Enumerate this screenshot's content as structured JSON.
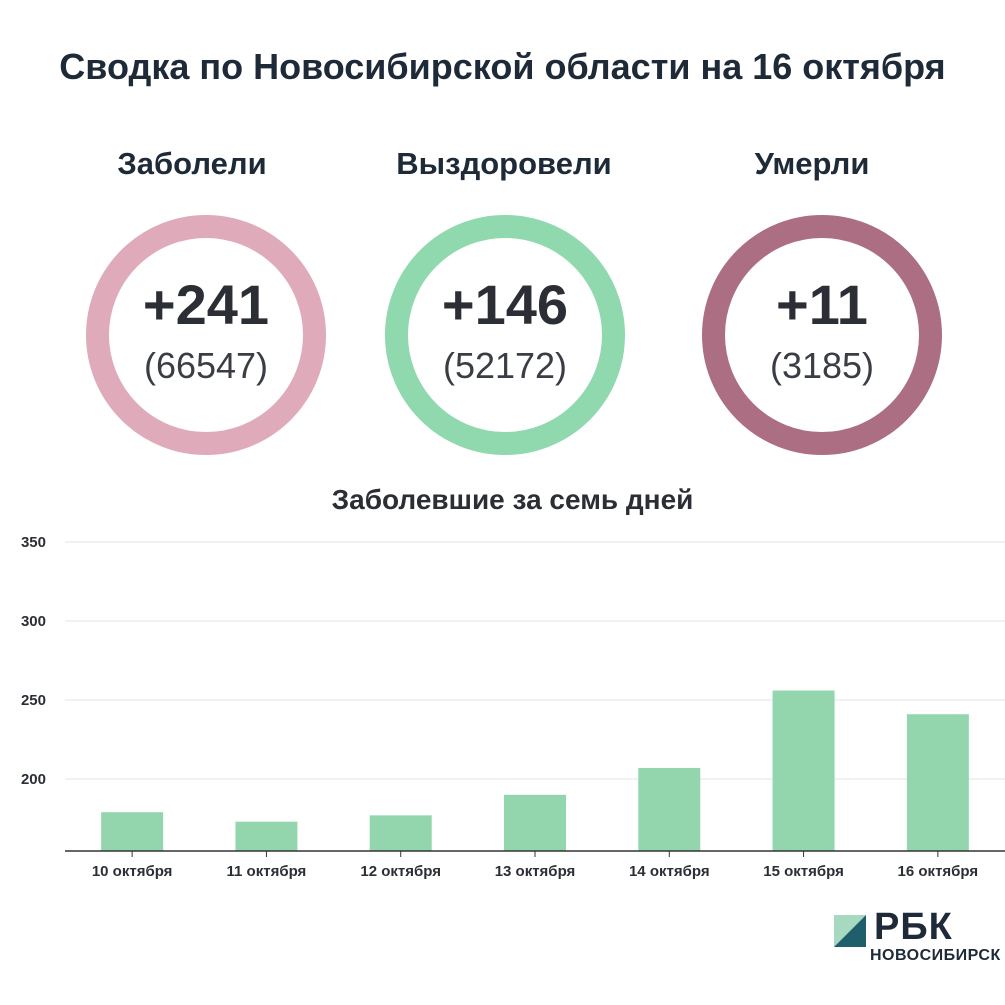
{
  "title": "Сводка по Новосибирской области на 16 октября",
  "stats": [
    {
      "label": "Заболели",
      "value": "+241",
      "total": "(66547)",
      "color": "#dfabbb"
    },
    {
      "label": "Выздоровели",
      "value": "+146",
      "total": "(52172)",
      "color": "#90d8ad"
    },
    {
      "label": "Умерли",
      "value": "+11",
      "total": "(3185)",
      "color": "#ac6e82"
    }
  ],
  "chart_data": {
    "type": "bar",
    "title": "Заболевшие за семь дней",
    "categories": [
      "10 октября",
      "11 октября",
      "12 октября",
      "13 октября",
      "14 октября",
      "15 октября",
      "16 октября"
    ],
    "values": [
      179,
      173,
      177,
      190,
      207,
      256,
      241
    ],
    "yticks": [
      200,
      250,
      300,
      350
    ],
    "ylim": [
      155,
      350
    ],
    "grid": true,
    "bar_color": "#93d6ad"
  },
  "logo": {
    "name": "РБК",
    "region": "НОВОСИБИРСК"
  }
}
